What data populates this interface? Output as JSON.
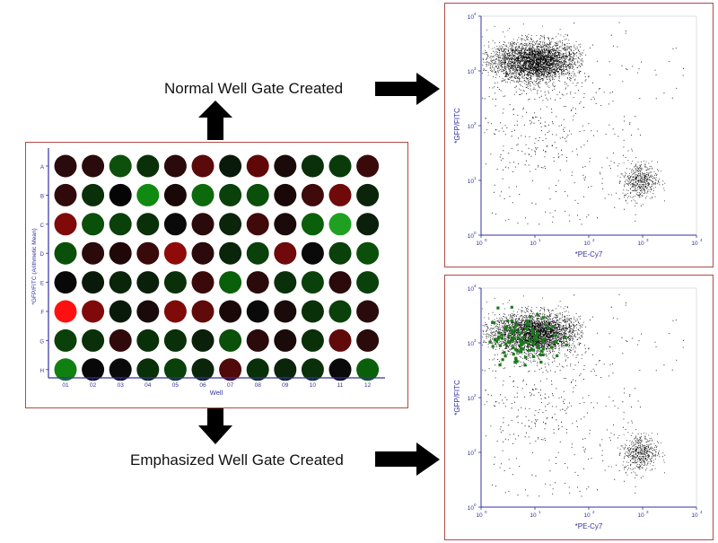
{
  "captions": {
    "normal": "Normal Well Gate Created",
    "emphasized": "Emphasized Well Gate Created"
  },
  "plate": {
    "xlabel": "Well",
    "ylabel": "*GFP/FITC (Arithmetic Mean)",
    "rows": [
      "A",
      "B",
      "C",
      "D",
      "E",
      "F",
      "G",
      "H"
    ],
    "cols": [
      "01",
      "02",
      "03",
      "04",
      "05",
      "06",
      "07",
      "08",
      "09",
      "10",
      "11",
      "12"
    ],
    "well_colors": [
      [
        "#2a0a0a",
        "#2a0a0a",
        "#0c500c",
        "#0a300a",
        "#2a0a0a",
        "#5a0a0a",
        "#0a1a0a",
        "#600808",
        "#1a0a0a",
        "#0a300a",
        "#0a3a0a",
        "#3a0a0a"
      ],
      [
        "#300a0a",
        "#0a300a",
        "#050505",
        "#108a10",
        "#1a0808",
        "#0c6a0c",
        "#0a400a",
        "#0a500a",
        "#1a0808",
        "#400a0a",
        "#700a0a",
        "#0a250a"
      ],
      [
        "#800a0a",
        "#0a500a",
        "#0a400a",
        "#0a300a",
        "#0a0a0a",
        "#2a0a0a",
        "#0a250a",
        "#400a0a",
        "#1a0a0a",
        "#0a600a",
        "#20a020",
        "#0a200a"
      ],
      [
        "#0a500a",
        "#2a0a0a",
        "#200808",
        "#3a0a0a",
        "#900a0a",
        "#2a0a0a",
        "#0a250a",
        "#0a400a",
        "#700a0a",
        "#0a0a0a",
        "#0a400a",
        "#0a500a"
      ],
      [
        "#080808",
        "#0a1a0a",
        "#0a250a",
        "#0a200a",
        "#0a300a",
        "#3a0a0a",
        "#0a600a",
        "#2a0a0a",
        "#0a300a",
        "#0a400a",
        "#2a0a0a",
        "#0a400a"
      ],
      [
        "#ff1010",
        "#800a0a",
        "#0a1a0a",
        "#1a0a0a",
        "#800a0a",
        "#600a0a",
        "#1a0808",
        "#0a0a0a",
        "#1a0a0a",
        "#0a300a",
        "#0a400a",
        "#2a0a0a"
      ],
      [
        "#0a400a",
        "#0a300a",
        "#300a0a",
        "#0a300a",
        "#0a300a",
        "#0a200a",
        "#0a500a",
        "#2a0a0a",
        "#1a0a0a",
        "#0a300a",
        "#600a0a",
        "#2a0a0a"
      ],
      [
        "#108010",
        "#080808",
        "#0a0a0a",
        "#0a300a",
        "#0a400a",
        "#0a250a",
        "#500a0a",
        "#0a300a",
        "#0a250a",
        "#0a300a",
        "#0a0a0a",
        "#0a600a"
      ]
    ]
  },
  "scatter_top": {
    "xlabel": "*PE-Cy7",
    "ylabel": "*GFP/FITC",
    "x_ticks": [
      "10",
      "10",
      "10",
      "10",
      "10"
    ],
    "x_tick_exps": [
      "0",
      "1",
      "2",
      "3",
      "4"
    ],
    "y_ticks": [
      "10",
      "10",
      "10",
      "10",
      "10"
    ],
    "y_tick_exps": [
      "0",
      "1",
      "2",
      "3",
      "4"
    ],
    "point_color": "#000000"
  },
  "scatter_bottom": {
    "xlabel": "*PE-Cy7",
    "ylabel": "*GFP/FITC",
    "x_ticks": [
      "10",
      "10",
      "10",
      "10",
      "10"
    ],
    "x_tick_exps": [
      "0",
      "1",
      "2",
      "3",
      "4"
    ],
    "y_ticks": [
      "10",
      "10",
      "10",
      "10",
      "10"
    ],
    "y_tick_exps": [
      "0",
      "1",
      "2",
      "3",
      "4"
    ],
    "point_color": "#000000",
    "gate_color": "#1a7a1a"
  },
  "chart_data": [
    {
      "type": "scatter",
      "xscale": "log",
      "yscale": "log",
      "xlim": [
        1,
        10000
      ],
      "ylim": [
        1,
        10000
      ],
      "xlabel": "*PE-Cy7",
      "ylabel": "*GFP/FITC",
      "populations": [
        {
          "center_x": 12,
          "center_y": 1500,
          "description": "dense cluster"
        },
        {
          "center_x": 900,
          "center_y": 10,
          "description": "small cluster"
        }
      ]
    },
    {
      "type": "scatter",
      "xscale": "log",
      "yscale": "log",
      "xlim": [
        1,
        10000
      ],
      "ylim": [
        1,
        10000
      ],
      "xlabel": "*PE-Cy7",
      "ylabel": "*GFP/FITC",
      "populations": [
        {
          "center_x": 12,
          "center_y": 1500,
          "description": "dense cluster"
        },
        {
          "center_x": 900,
          "center_y": 10,
          "description": "small cluster"
        },
        {
          "center_x": 6,
          "center_y": 1200,
          "description": "emphasized gated events"
        }
      ]
    }
  ]
}
